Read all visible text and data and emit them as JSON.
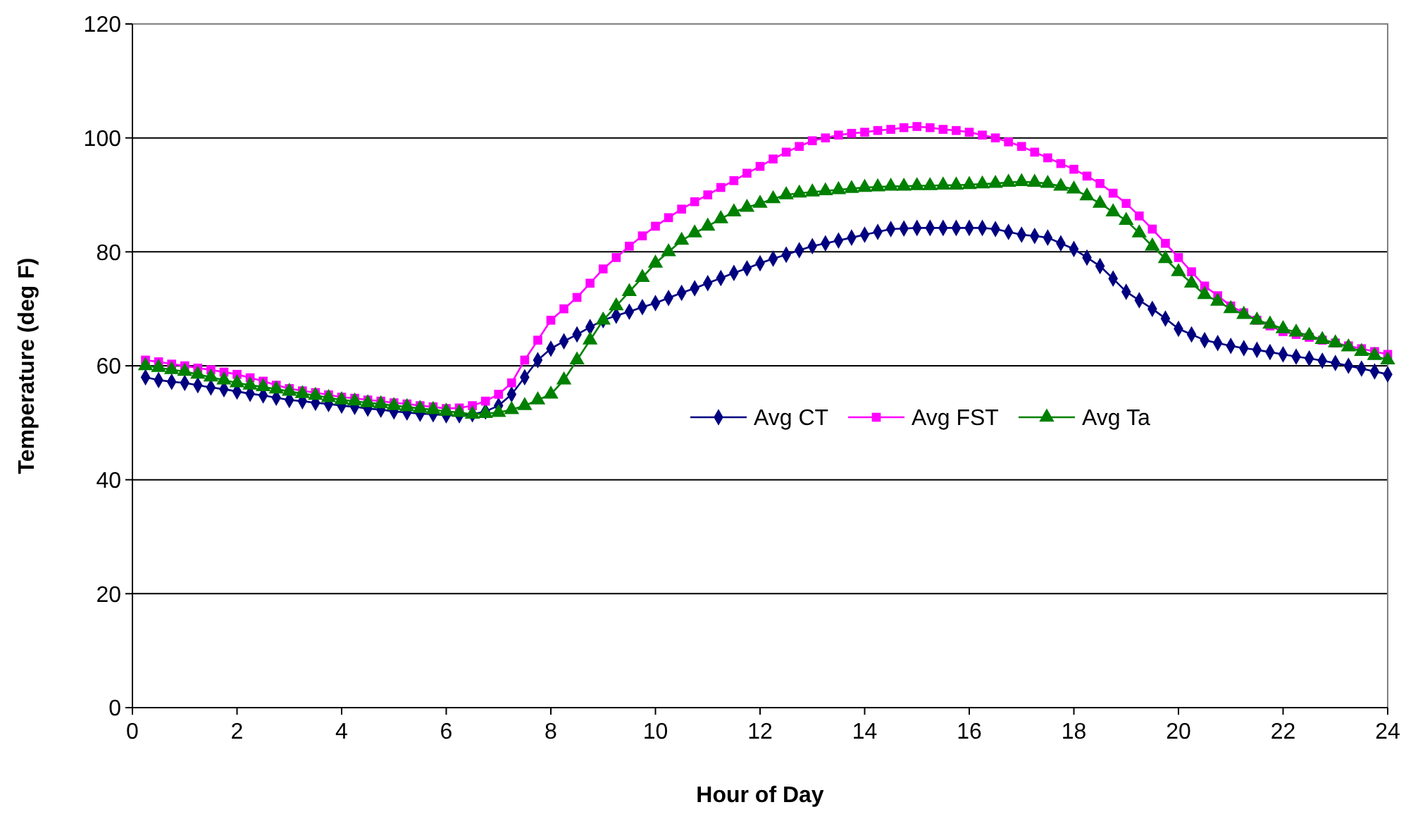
{
  "chart_data": {
    "type": "line",
    "xlabel": "Hour of Day",
    "ylabel": "Temperature (deg F)",
    "x": [
      0.25,
      0.5,
      0.75,
      1,
      1.25,
      1.5,
      1.75,
      2,
      2.25,
      2.5,
      2.75,
      3,
      3.25,
      3.5,
      3.75,
      4,
      4.25,
      4.5,
      4.75,
      5,
      5.25,
      5.5,
      5.75,
      6,
      6.25,
      6.5,
      6.75,
      7,
      7.25,
      7.5,
      7.75,
      8,
      8.25,
      8.5,
      8.75,
      9,
      9.25,
      9.5,
      9.75,
      10,
      10.25,
      10.5,
      10.75,
      11,
      11.25,
      11.5,
      11.75,
      12,
      12.25,
      12.5,
      12.75,
      13,
      13.25,
      13.5,
      13.75,
      14,
      14.25,
      14.5,
      14.75,
      15,
      15.25,
      15.5,
      15.75,
      16,
      16.25,
      16.5,
      16.75,
      17,
      17.25,
      17.5,
      17.75,
      18,
      18.25,
      18.5,
      18.75,
      19,
      19.25,
      19.5,
      19.75,
      20,
      20.25,
      20.5,
      20.75,
      21,
      21.25,
      21.5,
      21.75,
      22,
      22.25,
      22.5,
      22.75,
      23,
      23.25,
      23.5,
      23.75,
      24
    ],
    "series": [
      {
        "name": "Avg CT",
        "color": "#000080",
        "marker": "diamond",
        "values": [
          58,
          57.5,
          57.2,
          57,
          56.6,
          56.2,
          55.9,
          55.5,
          55.1,
          54.8,
          54.4,
          54,
          53.8,
          53.5,
          53.3,
          53,
          52.8,
          52.5,
          52.3,
          52,
          51.8,
          51.6,
          51.5,
          51.3,
          51.3,
          51.5,
          52,
          53,
          55,
          58,
          61,
          63,
          64.3,
          65.5,
          66.8,
          68,
          68.8,
          69.5,
          70.3,
          71,
          71.9,
          72.8,
          73.6,
          74.5,
          75.4,
          76.3,
          77.1,
          78,
          78.8,
          79.5,
          80.3,
          81,
          81.5,
          82,
          82.5,
          83,
          83.5,
          84,
          84.1,
          84.2,
          84.2,
          84.2,
          84.2,
          84.2,
          84.2,
          84,
          83.5,
          83,
          82.8,
          82.5,
          81.5,
          80.5,
          79,
          77.5,
          75.3,
          73,
          71.5,
          70,
          68.3,
          66.5,
          65.5,
          64.5,
          64,
          63.5,
          63.1,
          62.8,
          62.4,
          62,
          61.6,
          61.3,
          60.9,
          60.5,
          60,
          59.5,
          59,
          58.5
        ]
      },
      {
        "name": "Avg FST",
        "color": "#ff00ff",
        "marker": "square",
        "values": [
          61,
          60.7,
          60.3,
          60,
          59.6,
          59.3,
          58.9,
          58.5,
          57.9,
          57.3,
          56.6,
          56,
          55.6,
          55.3,
          54.9,
          54.5,
          54.3,
          54,
          53.8,
          53.5,
          53.3,
          53,
          52.8,
          52.5,
          52.6,
          53,
          53.8,
          55,
          57,
          61,
          64.5,
          68,
          70,
          72,
          74.5,
          77,
          79,
          81,
          82.8,
          84.5,
          86,
          87.5,
          88.8,
          90,
          91.3,
          92.5,
          93.8,
          95,
          96.3,
          97.5,
          98.5,
          99.5,
          100,
          100.5,
          100.8,
          101,
          101.3,
          101.5,
          101.8,
          102,
          101.8,
          101.5,
          101.3,
          101,
          100.5,
          100,
          99.3,
          98.5,
          97.5,
          96.5,
          95.5,
          94.5,
          93.3,
          92,
          90.3,
          88.5,
          86.3,
          84,
          81.5,
          79,
          76.5,
          74,
          72.3,
          70.5,
          69.3,
          68,
          67,
          66,
          65.5,
          65,
          64.5,
          64,
          63.5,
          63,
          62.5,
          62
        ]
      },
      {
        "name": "Avg Ta",
        "color": "#008000",
        "marker": "triangle",
        "values": [
          60,
          59.7,
          59.3,
          59,
          58.5,
          58,
          57.5,
          57,
          56.6,
          56.3,
          55.9,
          55.5,
          55.1,
          54.8,
          54.4,
          54,
          53.8,
          53.5,
          53.3,
          53,
          52.8,
          52.5,
          52.3,
          52,
          51.8,
          51.5,
          51.6,
          51.8,
          52.3,
          53,
          54,
          55,
          57.5,
          61,
          64.5,
          68,
          70.5,
          73,
          75.5,
          78,
          80,
          82,
          83.3,
          84.5,
          85.8,
          87,
          87.8,
          88.5,
          89.3,
          90,
          90.3,
          90.5,
          90.7,
          90.9,
          91.1,
          91.3,
          91.4,
          91.5,
          91.5,
          91.6,
          91.6,
          91.7,
          91.7,
          91.8,
          91.9,
          92,
          92.2,
          92.3,
          92.2,
          92,
          91.5,
          91,
          89.8,
          88.5,
          87,
          85.5,
          83.3,
          81,
          78.8,
          76.5,
          74.5,
          72.5,
          71.3,
          70,
          69,
          68,
          67.3,
          66.5,
          65.9,
          65.3,
          64.6,
          64,
          63.3,
          62.5,
          61.8,
          61
        ]
      }
    ],
    "xlim": [
      0,
      24
    ],
    "xticks": [
      0,
      2,
      4,
      6,
      8,
      10,
      12,
      14,
      16,
      18,
      20,
      22,
      24
    ],
    "ylim": [
      0,
      120
    ],
    "yticks": [
      0,
      20,
      40,
      60,
      80,
      100,
      120
    ],
    "grid": "y",
    "legend": "center",
    "line_style": "solid"
  }
}
